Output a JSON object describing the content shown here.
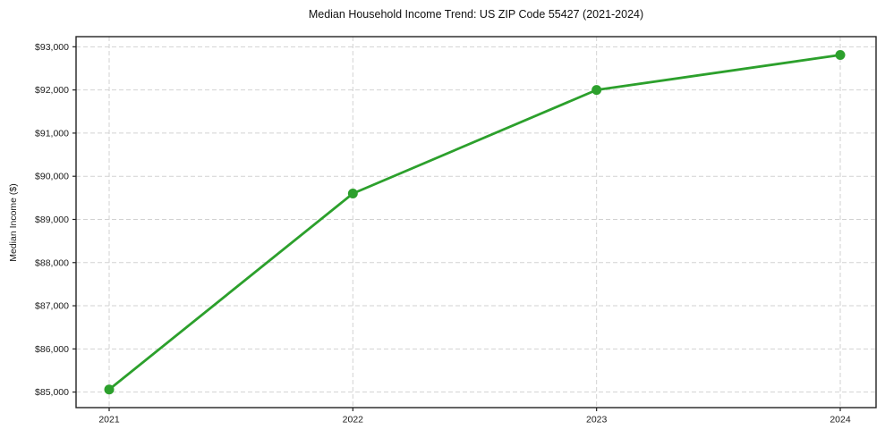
{
  "figure": {
    "background": "#ffffff"
  },
  "chart_data": {
    "type": "line",
    "title": "Median Household Income Trend: US ZIP Code 55427 (2021-2024)",
    "xlabel": "",
    "ylabel": "Median Income ($)",
    "categories": [
      "2021",
      "2022",
      "2023",
      "2024"
    ],
    "series": [
      {
        "values": [
          85060,
          89600,
          92000,
          92810
        ],
        "color": "#2ca02c",
        "marker": "circle"
      }
    ],
    "ylim": [
      84640,
      93235
    ],
    "ytick_values": [
      85000,
      86000,
      87000,
      88000,
      89000,
      90000,
      91000,
      92000,
      93000
    ],
    "ytick_labels": [
      "$85,000",
      "$86,000",
      "$87,000",
      "$88,000",
      "$89,000",
      "$90,000",
      "$91,000",
      "$92,000",
      "$93,000"
    ],
    "grid": true,
    "grid_color": "#d2d2d2",
    "legend_position": "none"
  }
}
